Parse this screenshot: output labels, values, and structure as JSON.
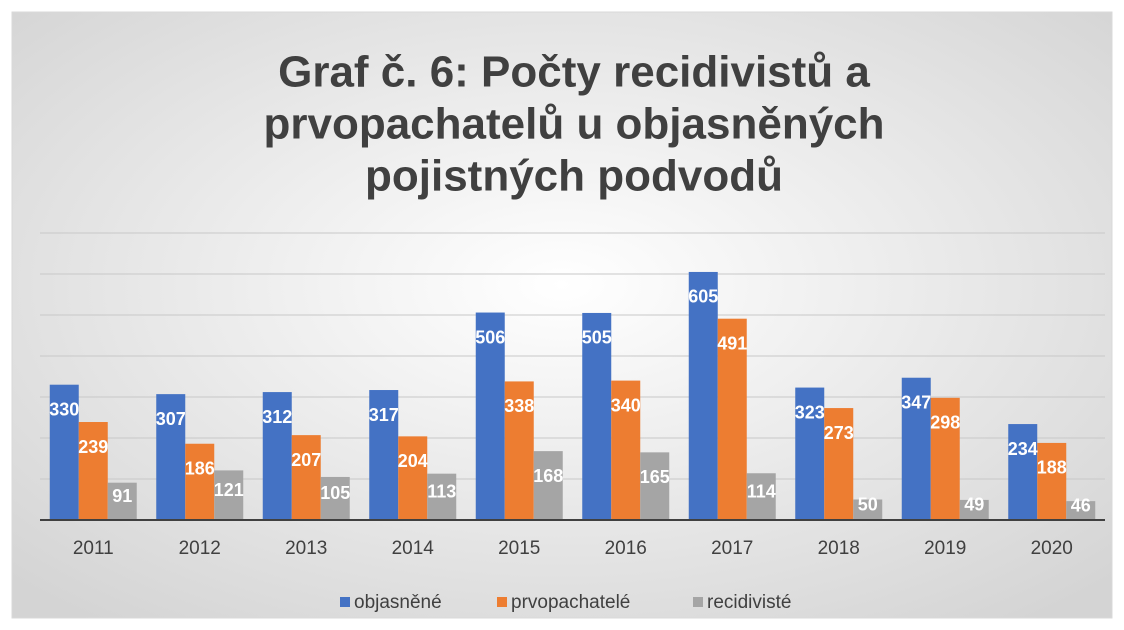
{
  "chart_data": {
    "type": "bar",
    "title": [
      "Graf č. 6: Počty recidivistů a",
      "prvopachatelů u objasněných",
      "pojistných podvodů"
    ],
    "categories": [
      "2011",
      "2012",
      "2013",
      "2014",
      "2015",
      "2016",
      "2017",
      "2018",
      "2019",
      "2020"
    ],
    "series": [
      {
        "name": "objasněné",
        "color": "#4472c4",
        "values": [
          330,
          307,
          312,
          317,
          506,
          505,
          605,
          323,
          347,
          234
        ]
      },
      {
        "name": "prvopachatelé",
        "color": "#ed7d31",
        "values": [
          239,
          186,
          207,
          204,
          338,
          340,
          491,
          273,
          298,
          188
        ]
      },
      {
        "name": "recidivisté",
        "color": "#a5a5a5",
        "values": [
          91,
          121,
          105,
          113,
          168,
          165,
          114,
          50,
          49,
          46
        ]
      }
    ],
    "ylim": [
      0,
      700
    ],
    "yticks": [
      0,
      100,
      200,
      300,
      400,
      500,
      600,
      700
    ],
    "grid": true,
    "legend": "bottom"
  }
}
